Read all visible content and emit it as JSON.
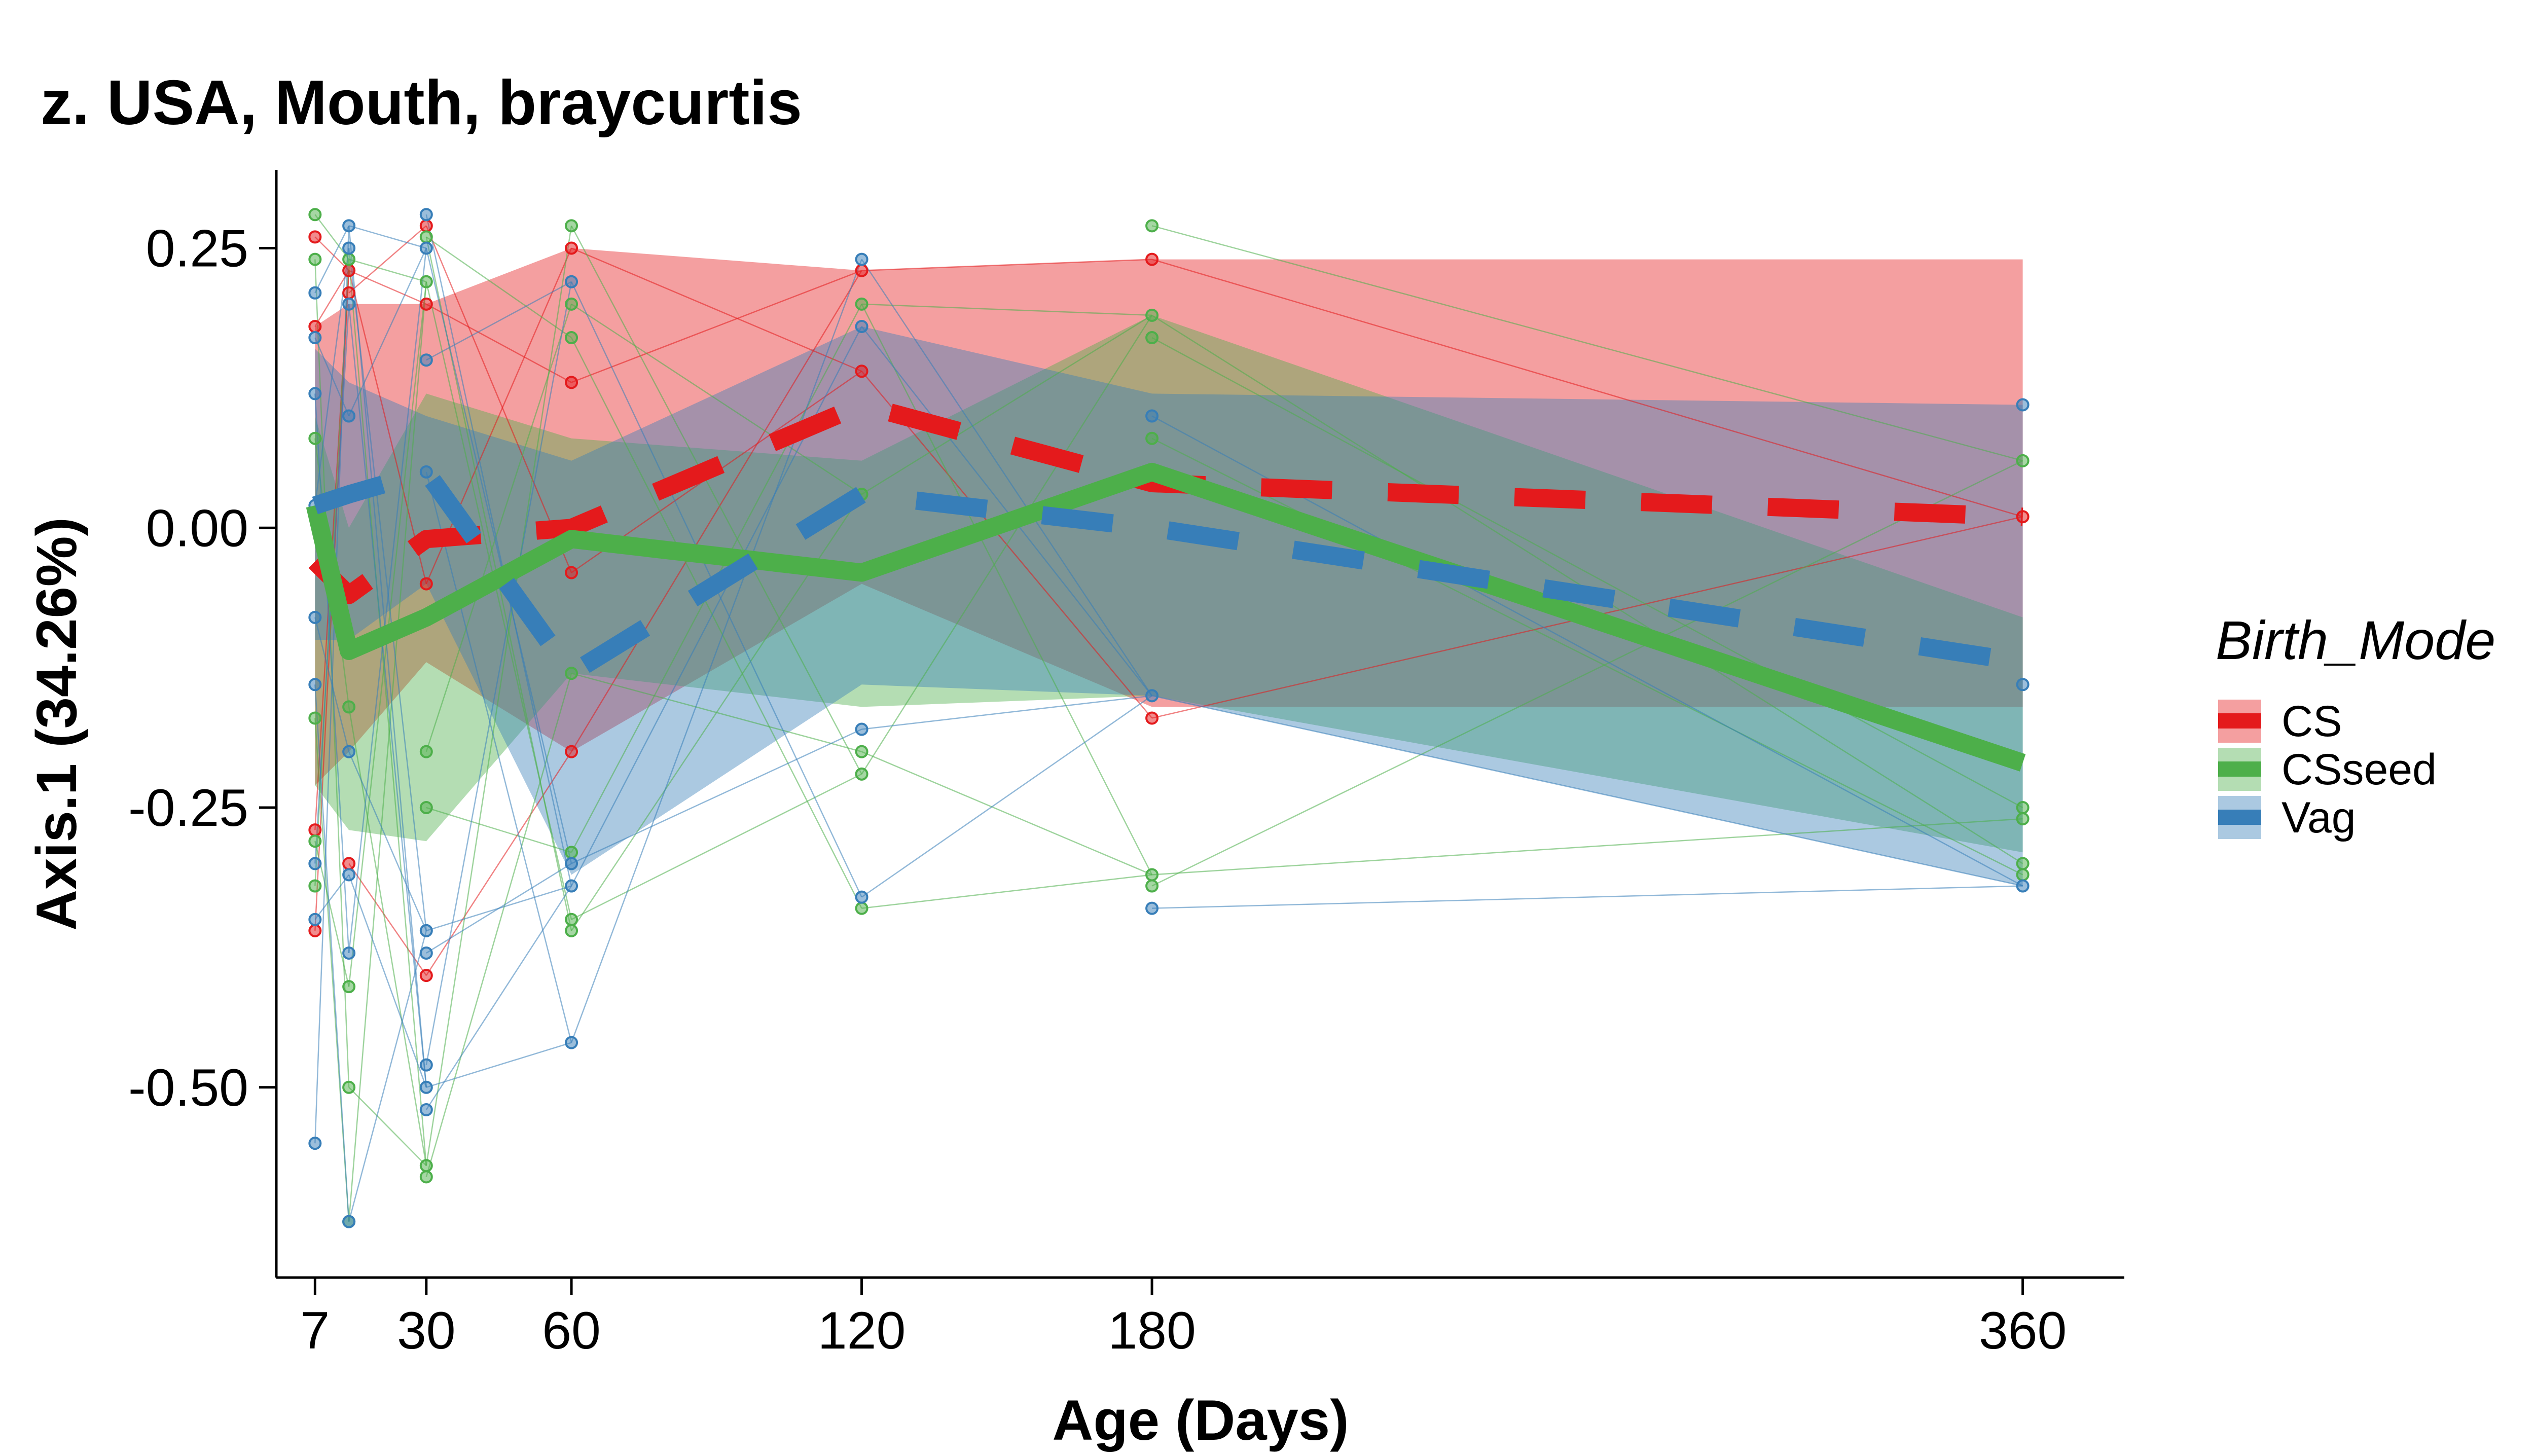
{
  "chart_data": {
    "type": "line",
    "title": "z. USA, Mouth, braycurtis",
    "xlabel": "Age (Days)",
    "ylabel": "Axis.1 (34.26%)",
    "xlim": [
      -1,
      381
    ],
    "ylim": [
      -0.67,
      0.32
    ],
    "x_ticks": [
      7,
      30,
      60,
      120,
      180,
      360
    ],
    "x_tick_labels": [
      "7",
      "30",
      "60",
      "120",
      "180",
      "360"
    ],
    "y_ticks": [
      0.25,
      0.0,
      -0.25,
      -0.5
    ],
    "y_tick_labels": [
      "0.25",
      "0.00",
      "-0.25",
      "-0.50"
    ],
    "grid": false,
    "legend": {
      "title": "Birth_Mode",
      "position": "right",
      "entries": [
        "CS",
        "CSseed",
        "Vag"
      ]
    },
    "series": [
      {
        "name": "CS",
        "color": "#e41a1c",
        "line_style": "dashed",
        "x": [
          7,
          14,
          30,
          60,
          120,
          180,
          360
        ],
        "y": [
          -0.03,
          -0.06,
          -0.01,
          0.0,
          0.11,
          0.04,
          0.01
        ],
        "band_lower": [
          -0.23,
          -0.2,
          -0.12,
          -0.2,
          -0.05,
          -0.16,
          -0.16
        ],
        "band_upper": [
          0.18,
          0.2,
          0.2,
          0.25,
          0.23,
          0.24,
          0.24
        ],
        "points": [
          [
            7,
            0.26
          ],
          [
            7,
            0.18
          ],
          [
            7,
            -0.27
          ],
          [
            7,
            -0.36
          ],
          [
            14,
            0.23
          ],
          [
            14,
            0.21
          ],
          [
            14,
            -0.3
          ],
          [
            30,
            0.27
          ],
          [
            30,
            0.2
          ],
          [
            30,
            -0.05
          ],
          [
            30,
            -0.4
          ],
          [
            60,
            0.25
          ],
          [
            60,
            0.13
          ],
          [
            60,
            -0.04
          ],
          [
            60,
            -0.2
          ],
          [
            120,
            0.23
          ],
          [
            120,
            0.14
          ],
          [
            180,
            0.24
          ],
          [
            180,
            -0.17
          ],
          [
            360,
            0.01
          ]
        ]
      },
      {
        "name": "CSseed",
        "color": "#4daf4a",
        "line_style": "solid",
        "x": [
          7,
          14,
          30,
          60,
          120,
          180,
          360
        ],
        "y": [
          0.02,
          -0.11,
          -0.08,
          -0.01,
          -0.04,
          0.05,
          -0.21
        ],
        "band_lower": [
          -0.23,
          -0.27,
          -0.28,
          -0.13,
          -0.16,
          -0.15,
          -0.29
        ],
        "band_upper": [
          0.1,
          0.0,
          0.12,
          0.08,
          0.06,
          0.19,
          -0.08
        ],
        "points": [
          [
            7,
            0.28
          ],
          [
            7,
            0.24
          ],
          [
            7,
            0.08
          ],
          [
            7,
            -0.17
          ],
          [
            7,
            -0.28
          ],
          [
            7,
            -0.32
          ],
          [
            14,
            0.24
          ],
          [
            14,
            -0.16
          ],
          [
            14,
            -0.41
          ],
          [
            14,
            -0.5
          ],
          [
            14,
            -0.62
          ],
          [
            30,
            0.26
          ],
          [
            30,
            0.22
          ],
          [
            30,
            -0.2
          ],
          [
            30,
            -0.25
          ],
          [
            30,
            -0.57
          ],
          [
            30,
            -0.58
          ],
          [
            60,
            0.27
          ],
          [
            60,
            0.2
          ],
          [
            60,
            0.17
          ],
          [
            60,
            -0.13
          ],
          [
            60,
            -0.29
          ],
          [
            60,
            -0.35
          ],
          [
            60,
            -0.36
          ],
          [
            120,
            0.2
          ],
          [
            120,
            0.03
          ],
          [
            120,
            -0.2
          ],
          [
            120,
            -0.22
          ],
          [
            120,
            -0.34
          ],
          [
            180,
            0.27
          ],
          [
            180,
            0.19
          ],
          [
            180,
            0.17
          ],
          [
            180,
            0.08
          ],
          [
            180,
            -0.31
          ],
          [
            180,
            -0.32
          ],
          [
            360,
            0.06
          ],
          [
            360,
            -0.25
          ],
          [
            360,
            -0.26
          ],
          [
            360,
            -0.3
          ],
          [
            360,
            -0.31
          ]
        ]
      },
      {
        "name": "Vag",
        "color": "#377eb8",
        "line_style": "dashed",
        "x": [
          7,
          14,
          30,
          60,
          120,
          180,
          360
        ],
        "y": [
          0.02,
          0.03,
          0.05,
          -0.13,
          0.03,
          0.0,
          -0.12
        ],
        "band_lower": [
          -0.1,
          -0.1,
          -0.05,
          -0.31,
          -0.14,
          -0.15,
          -0.32
        ],
        "band_upper": [
          0.16,
          0.13,
          0.1,
          0.06,
          0.18,
          0.12,
          0.11
        ],
        "points": [
          [
            7,
            0.21
          ],
          [
            7,
            0.17
          ],
          [
            7,
            0.12
          ],
          [
            7,
            0.02
          ],
          [
            7,
            -0.08
          ],
          [
            7,
            -0.14
          ],
          [
            7,
            -0.3
          ],
          [
            7,
            -0.35
          ],
          [
            7,
            -0.55
          ],
          [
            14,
            0.27
          ],
          [
            14,
            0.25
          ],
          [
            14,
            0.2
          ],
          [
            14,
            0.1
          ],
          [
            14,
            -0.2
          ],
          [
            14,
            -0.31
          ],
          [
            14,
            -0.38
          ],
          [
            14,
            -0.62
          ],
          [
            30,
            0.28
          ],
          [
            30,
            0.25
          ],
          [
            30,
            0.15
          ],
          [
            30,
            0.05
          ],
          [
            30,
            -0.36
          ],
          [
            30,
            -0.38
          ],
          [
            30,
            -0.48
          ],
          [
            30,
            -0.5
          ],
          [
            30,
            -0.52
          ],
          [
            60,
            0.22
          ],
          [
            60,
            -0.3
          ],
          [
            60,
            -0.32
          ],
          [
            60,
            -0.46
          ],
          [
            120,
            0.24
          ],
          [
            120,
            0.18
          ],
          [
            120,
            -0.18
          ],
          [
            120,
            -0.33
          ],
          [
            180,
            0.1
          ],
          [
            180,
            -0.15
          ],
          [
            180,
            -0.34
          ],
          [
            360,
            0.11
          ],
          [
            360,
            -0.14
          ],
          [
            360,
            -0.32
          ]
        ]
      }
    ]
  }
}
